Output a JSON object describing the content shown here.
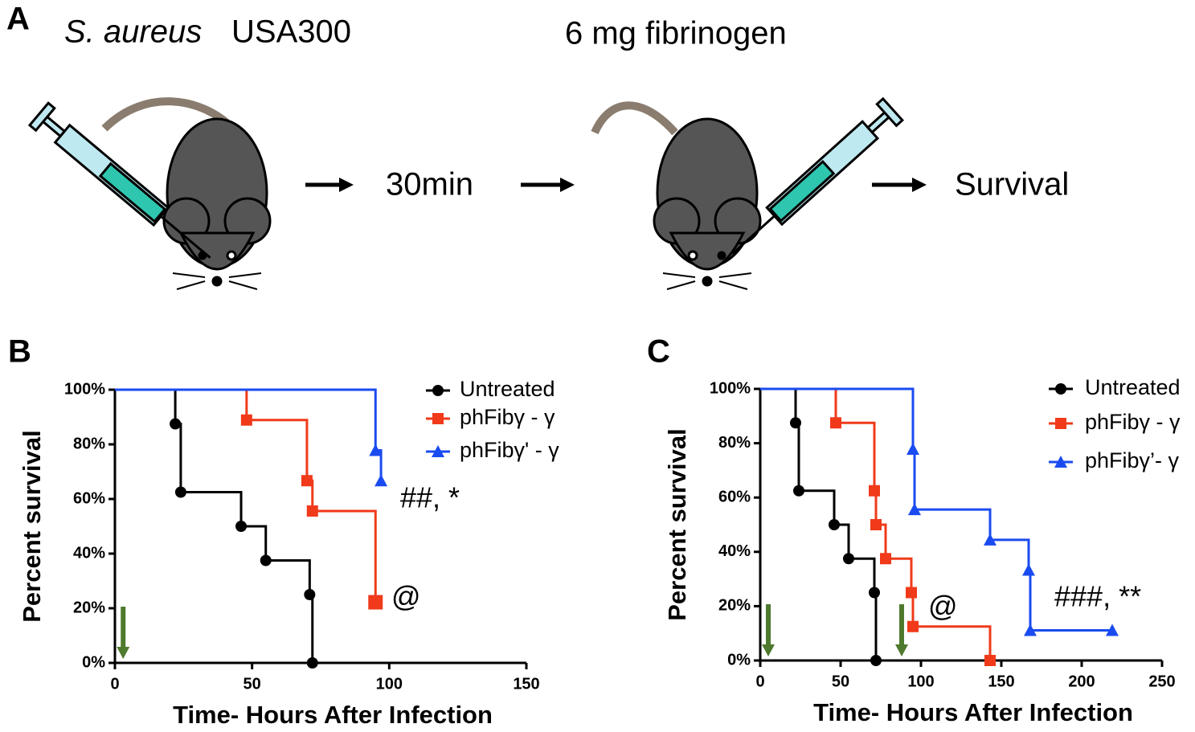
{
  "schematic": {
    "panel": "A",
    "organism": "S. aureus",
    "strain": "USA300",
    "treatment": "6 mg fibrinogen",
    "interval": "30min",
    "outcome": "Survival"
  },
  "chart_data": [
    {
      "type": "step",
      "panel": "B",
      "xlabel": "Time- Hours After Infection",
      "ylabel": "Percent survival",
      "xlim": [
        0,
        150
      ],
      "xticks": [
        0,
        50,
        100,
        150
      ],
      "ylim": [
        0,
        100
      ],
      "yticks": [
        {
          "value": 0,
          "label": "0%"
        },
        {
          "value": 20,
          "label": "20%"
        },
        {
          "value": 40,
          "label": "40%"
        },
        {
          "value": 60,
          "label": "60%"
        },
        {
          "value": 80,
          "label": "80%"
        },
        {
          "value": 100,
          "label": "100%"
        }
      ],
      "arrows": [
        3
      ],
      "legend": "upper right",
      "series": [
        {
          "name": "Untreated",
          "color": "#000000",
          "marker": "circle",
          "x": [
            0,
            22,
            24,
            46,
            55,
            71,
            72
          ],
          "values": [
            100,
            87.5,
            62.5,
            50,
            37.5,
            25,
            0
          ]
        },
        {
          "name": "phFibγ - γ",
          "color": "#f03a1a",
          "marker": "square",
          "x": [
            0,
            48,
            70,
            72,
            95
          ],
          "values": [
            100,
            88.9,
            66.7,
            55.6,
            22.2
          ]
        },
        {
          "name": "phFibγ' - γ",
          "color": "#1a4bf0",
          "marker": "triangle",
          "x": [
            0,
            95,
            97
          ],
          "values": [
            100,
            77.8,
            66.7
          ]
        }
      ],
      "annotations": [
        "##, *",
        "@"
      ]
    },
    {
      "type": "step",
      "panel": "C",
      "xlabel": "Time- Hours After Infection",
      "ylabel": "Percent survival",
      "xlim": [
        0,
        250
      ],
      "xticks": [
        0,
        50,
        100,
        150,
        200,
        250
      ],
      "ylim": [
        0,
        100
      ],
      "yticks": [
        {
          "value": 0,
          "label": "0%"
        },
        {
          "value": 20,
          "label": "20%"
        },
        {
          "value": 40,
          "label": "40%"
        },
        {
          "value": 60,
          "label": "60%"
        },
        {
          "value": 80,
          "label": "80%"
        },
        {
          "value": 100,
          "label": "100%"
        }
      ],
      "arrows": [
        5,
        88
      ],
      "legend": "upper right",
      "series": [
        {
          "name": "Untreated",
          "color": "#000000",
          "marker": "circle",
          "x": [
            0,
            22,
            24,
            46,
            55,
            71,
            72
          ],
          "values": [
            100,
            87.5,
            62.5,
            50,
            37.5,
            25,
            0
          ]
        },
        {
          "name": "phFibγ - γ",
          "color": "#f03a1a",
          "marker": "square",
          "x": [
            0,
            47,
            71,
            72,
            78,
            94,
            95,
            143
          ],
          "values": [
            100,
            87.5,
            62.5,
            50,
            37.5,
            25,
            12.5,
            0
          ]
        },
        {
          "name": "phFibγ’- γ",
          "color": "#1a4bf0",
          "marker": "triangle",
          "x": [
            0,
            95,
            96,
            143,
            167,
            168,
            219
          ],
          "values": [
            100,
            77.8,
            55.6,
            44.4,
            33.3,
            11.1,
            11.1
          ]
        }
      ],
      "annotations": [
        "###, **",
        "@"
      ]
    }
  ]
}
